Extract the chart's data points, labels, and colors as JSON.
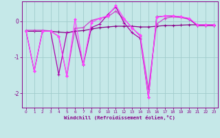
{
  "xlabel": "Windchill (Refroidissement éolien,°C)",
  "bg_color": "#c5e8e8",
  "grid_color": "#a0cccc",
  "spine_color": "#880088",
  "xlim": [
    -0.5,
    23.5
  ],
  "ylim": [
    -2.4,
    0.55
  ],
  "yticks": [
    0,
    -1,
    -2
  ],
  "xticks": [
    0,
    1,
    2,
    3,
    4,
    5,
    6,
    7,
    8,
    9,
    10,
    11,
    12,
    13,
    14,
    15,
    16,
    17,
    18,
    19,
    20,
    21,
    22,
    23
  ],
  "series": [
    {
      "x": [
        0,
        1,
        2,
        3,
        4,
        5,
        6,
        7,
        8,
        9,
        10,
        11,
        12,
        13,
        14,
        15,
        16,
        17,
        18,
        19,
        20,
        21,
        22,
        23
      ],
      "y": [
        -0.28,
        -0.28,
        -0.28,
        -0.28,
        -0.3,
        -0.32,
        -0.28,
        -0.26,
        -0.22,
        -0.18,
        -0.16,
        -0.14,
        -0.14,
        -0.14,
        -0.16,
        -0.16,
        -0.14,
        -0.12,
        -0.12,
        -0.11,
        -0.1,
        -0.1,
        -0.1,
        -0.1
      ],
      "color": "#880088",
      "lw": 0.9,
      "ls": "-",
      "marker": "+"
    },
    {
      "x": [
        0,
        1,
        2,
        3,
        4,
        5,
        6,
        7,
        8,
        9,
        10,
        11,
        12,
        13,
        14,
        15,
        16,
        17,
        18,
        19,
        20,
        21,
        22,
        23
      ],
      "y": [
        -0.25,
        -0.25,
        -0.25,
        -0.27,
        -0.42,
        -1.52,
        -0.2,
        -0.18,
        0.02,
        0.08,
        0.12,
        0.28,
        0.06,
        -0.18,
        -0.42,
        -1.88,
        -0.08,
        0.08,
        0.12,
        0.1,
        0.06,
        -0.12,
        -0.12,
        -0.12
      ],
      "color": "#cc44cc",
      "lw": 0.9,
      "ls": "-",
      "marker": "+"
    },
    {
      "x": [
        0,
        1,
        2,
        3,
        4,
        5,
        6,
        7,
        8,
        9,
        10,
        11,
        12,
        13,
        14,
        15,
        16,
        17,
        18,
        19,
        20,
        21,
        22,
        23
      ],
      "y": [
        -0.28,
        -1.38,
        -0.28,
        -0.28,
        -1.48,
        -0.32,
        -0.28,
        -1.22,
        -0.18,
        -0.08,
        0.18,
        0.4,
        -0.04,
        -0.32,
        -0.48,
        -2.12,
        0.12,
        0.14,
        0.14,
        0.12,
        0.06,
        -0.12,
        -0.12,
        -0.12
      ],
      "color": "#aa00aa",
      "lw": 0.9,
      "ls": "-",
      "marker": "+"
    },
    {
      "x": [
        0,
        1,
        2,
        3,
        4,
        5,
        6,
        7,
        8,
        9,
        10,
        11,
        12,
        13,
        14,
        15,
        16,
        17,
        18,
        19,
        20,
        21,
        22,
        23
      ],
      "y": [
        -0.28,
        -1.38,
        -0.28,
        -0.28,
        -0.42,
        -1.52,
        0.06,
        -1.2,
        -0.04,
        0.08,
        0.15,
        0.43,
        0.08,
        -0.2,
        -0.38,
        -2.12,
        0.1,
        0.15,
        0.15,
        0.12,
        0.08,
        -0.1,
        -0.1,
        -0.1
      ],
      "color": "#ff44ff",
      "lw": 0.9,
      "ls": "-",
      "marker": "D"
    }
  ]
}
